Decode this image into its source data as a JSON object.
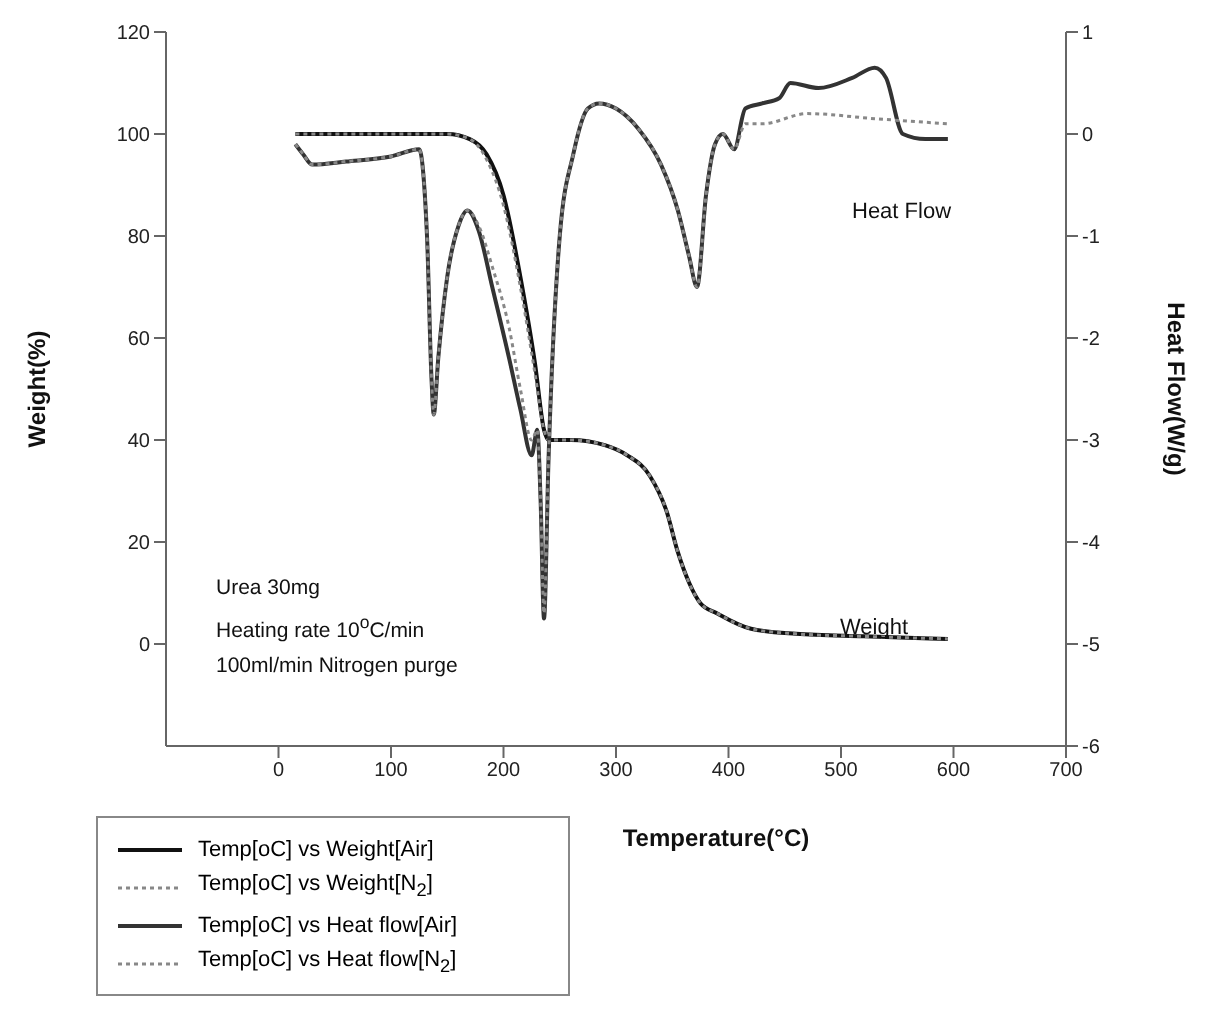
{
  "chart_data": {
    "type": "line",
    "xlabel": "Temperature(°C)",
    "ylabel": "Weight(%)",
    "y2label": "Heat Flow(W/g)",
    "xlim": [
      -100,
      700
    ],
    "xticks": [
      0,
      100,
      200,
      300,
      400,
      500,
      600,
      700
    ],
    "ylim": [
      -20,
      120
    ],
    "yticks": [
      0,
      20,
      40,
      60,
      80,
      100,
      120
    ],
    "y2lim": [
      -6,
      1
    ],
    "y2ticks": [
      -6,
      -5,
      -4,
      -3,
      -2,
      -1,
      0,
      1
    ],
    "legend": "bottom left",
    "marker": "none",
    "annotations": [
      "Heat Flow",
      "Weight",
      "Urea 30mg",
      "Heating rate 10$^{o}$C/min",
      "100ml/min Nitrogen purge"
    ],
    "series": [
      {
        "name": "Temp[oC] vs Weight[Air]",
        "color": "#111111",
        "line_style": "solid",
        "x": [
          15,
          150,
          170,
          185,
          200,
          215,
          228,
          236,
          240,
          260,
          290,
          310,
          330,
          345,
          355,
          365,
          375,
          390,
          420,
          460,
          520,
          595
        ],
        "values": [
          100,
          100,
          99,
          96,
          88,
          72,
          55,
          42,
          40,
          40,
          39,
          37,
          33,
          26,
          18,
          12,
          8,
          6,
          3,
          2,
          1.5,
          1
        ]
      },
      {
        "name": "Temp[oC] vs Weight[N$_{2}$]",
        "color": "#888888",
        "line_style": "dotted",
        "x": [
          15,
          150,
          170,
          185,
          200,
          215,
          228,
          236,
          240,
          260,
          290,
          310,
          330,
          345,
          355,
          365,
          375,
          390,
          420,
          460,
          520,
          595
        ],
        "values": [
          100,
          100,
          99,
          95,
          86,
          70,
          53,
          42,
          40,
          40,
          39,
          37,
          33,
          26,
          18,
          12,
          8,
          6,
          3,
          2,
          1.5,
          1
        ]
      },
      {
        "name": "Temp[oC] vs Heat flow[Air]",
        "color": "#333333",
        "line_style": "solid",
        "axis": "y2",
        "x": [
          15,
          22,
          30,
          60,
          100,
          125,
          132,
          136,
          138,
          142,
          150,
          160,
          168,
          178,
          190,
          205,
          215,
          225,
          230,
          233,
          236,
          240,
          250,
          262,
          275,
          285,
          300,
          320,
          340,
          355,
          365,
          372,
          380,
          388,
          395,
          405,
          415,
          430,
          445,
          455,
          480,
          510,
          530,
          540,
          555,
          575,
          595
        ],
        "values": [
          -0.1,
          -0.2,
          -0.3,
          -0.27,
          -0.22,
          -0.15,
          -1,
          -2.4,
          -2.75,
          -2.2,
          -1.4,
          -0.9,
          -0.75,
          -0.95,
          -1.5,
          -2.2,
          -2.7,
          -3.15,
          -2.9,
          -3.6,
          -4.75,
          -3.2,
          -1.0,
          -0.2,
          0.25,
          0.3,
          0.25,
          0.05,
          -0.3,
          -0.75,
          -1.2,
          -1.5,
          -0.6,
          -0.1,
          0,
          -0.15,
          0.25,
          0.3,
          0.35,
          0.5,
          0.45,
          0.55,
          0.65,
          0.55,
          0,
          -0.05,
          -0.05
        ]
      },
      {
        "name": "Temp[oC] vs Heat flow[N$_{2}$]",
        "color": "#888888",
        "line_style": "dotted",
        "axis": "y2",
        "x": [
          15,
          22,
          30,
          60,
          100,
          125,
          132,
          136,
          138,
          142,
          150,
          160,
          168,
          178,
          190,
          205,
          215,
          225,
          230,
          233,
          236,
          240,
          250,
          262,
          275,
          285,
          300,
          320,
          340,
          355,
          365,
          372,
          380,
          388,
          395,
          405,
          415,
          430,
          470,
          530,
          595
        ],
        "values": [
          -0.1,
          -0.2,
          -0.3,
          -0.27,
          -0.22,
          -0.15,
          -1,
          -2.4,
          -2.75,
          -2.2,
          -1.4,
          -0.9,
          -0.75,
          -0.9,
          -1.3,
          -1.9,
          -2.5,
          -3.0,
          -2.9,
          -3.6,
          -4.7,
          -3.2,
          -1.0,
          -0.2,
          0.25,
          0.3,
          0.25,
          0.05,
          -0.3,
          -0.75,
          -1.2,
          -1.5,
          -0.6,
          -0.1,
          0,
          -0.15,
          0.1,
          0.1,
          0.2,
          0.15,
          0.1
        ]
      }
    ]
  }
}
